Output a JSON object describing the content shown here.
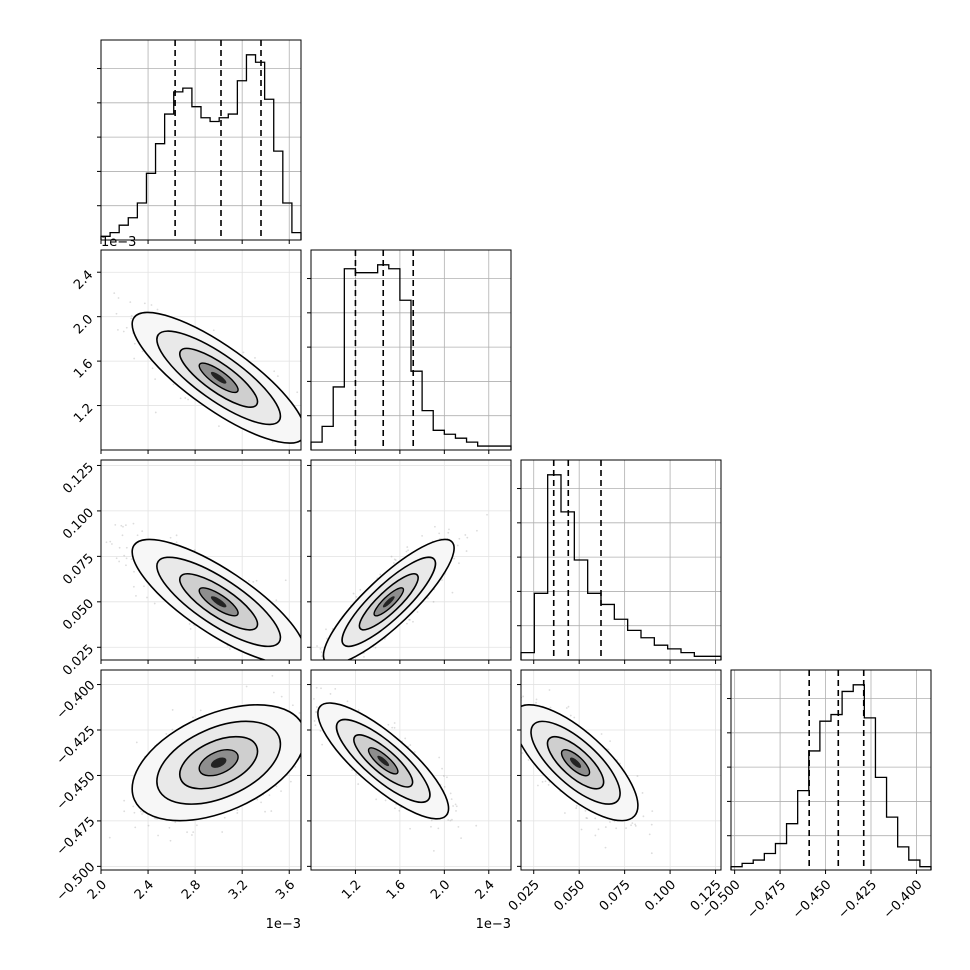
{
  "chart_data": {
    "type": "corner",
    "grid": true,
    "parameters": [
      {
        "range": [
          2.0,
          3.7
        ],
        "ticks": [
          2.0,
          2.4,
          2.8,
          3.2,
          3.6
        ],
        "tick_labels": [
          "2.0",
          "2.4",
          "2.8",
          "3.2",
          "3.6"
        ],
        "offset_text": "1e−3",
        "quantiles": [
          2.63,
          3.02,
          3.36
        ],
        "hist_counts": [
          1,
          2,
          4,
          6,
          10,
          18,
          26,
          34,
          40,
          41,
          36,
          33,
          32,
          33,
          34,
          43,
          50,
          48,
          38,
          24,
          10,
          2
        ]
      },
      {
        "range": [
          0.8,
          2.6
        ],
        "ticks": [
          1.2,
          1.6,
          2.0,
          2.4
        ],
        "tick_labels": [
          "1.2",
          "1.6",
          "2.0",
          "2.4"
        ],
        "offset_text": "1e−3",
        "quantiles": [
          1.2,
          1.45,
          1.72
        ],
        "hist_counts": [
          2,
          6,
          16,
          46,
          45,
          45,
          47,
          46,
          38,
          20,
          10,
          5,
          4,
          3,
          2,
          1,
          1,
          1
        ]
      },
      {
        "range": [
          0.018,
          0.128
        ],
        "ticks": [
          0.025,
          0.05,
          0.075,
          0.1,
          0.125
        ],
        "tick_labels": [
          "0.025",
          "0.050",
          "0.075",
          "0.100",
          "0.125"
        ],
        "offset_text": "",
        "quantiles": [
          0.036,
          0.044,
          0.062
        ],
        "hist_counts": [
          2,
          18,
          50,
          40,
          27,
          18,
          15,
          11,
          8,
          6,
          4,
          3,
          2,
          1,
          1
        ]
      },
      {
        "range": [
          -0.502,
          -0.392
        ],
        "ticks": [
          -0.5,
          -0.475,
          -0.45,
          -0.425,
          -0.4
        ],
        "tick_labels": [
          "−0.500",
          "−0.475",
          "−0.450",
          "−0.425",
          "−0.400"
        ],
        "offset_text": "",
        "quantiles": [
          -0.459,
          -0.443,
          -0.429
        ],
        "hist_counts": [
          1,
          2,
          3,
          5,
          8,
          14,
          24,
          36,
          45,
          47,
          54,
          56,
          46,
          28,
          16,
          7,
          3,
          1
        ]
      }
    ],
    "pairs": [
      {
        "x": 0,
        "y": 1,
        "cx": 3.0,
        "cy": 1.45,
        "sx": 0.3,
        "sy": 0.24,
        "r": -0.82
      },
      {
        "x": 0,
        "y": 2,
        "cx": 3.0,
        "cy": 0.05,
        "sx": 0.3,
        "sy": 0.014,
        "r": -0.8
      },
      {
        "x": 0,
        "y": 3,
        "cx": 3.0,
        "cy": -0.443,
        "sx": 0.3,
        "sy": 0.013,
        "r": 0.45
      },
      {
        "x": 1,
        "y": 2,
        "cx": 1.5,
        "cy": 0.05,
        "sx": 0.24,
        "sy": 0.014,
        "r": 0.86
      },
      {
        "x": 1,
        "y": 3,
        "cx": 1.45,
        "cy": -0.442,
        "sx": 0.24,
        "sy": 0.013,
        "r": -0.82
      },
      {
        "x": 2,
        "y": 3,
        "cx": 0.048,
        "cy": -0.443,
        "sx": 0.014,
        "sy": 0.013,
        "r": -0.74
      }
    ]
  }
}
